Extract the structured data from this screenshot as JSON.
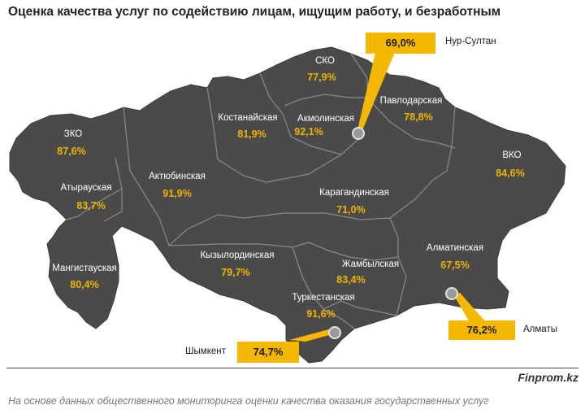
{
  "title": "Оценка качества услуг по содействию лицам, ищущим работу, и безработным",
  "regions": {
    "zko": {
      "name": "ЗКО",
      "value": "87,6%"
    },
    "atyrau": {
      "name": "Атырауская",
      "value": "83,7%"
    },
    "mangistau": {
      "name": "Мангистауская",
      "value": "80,4%"
    },
    "aktobe": {
      "name": "Актюбинская",
      "value": "91,9%"
    },
    "kostanay": {
      "name": "Костанайская",
      "value": "81,9%"
    },
    "sko": {
      "name": "СКО",
      "value": "77,9%"
    },
    "akmola": {
      "name": "Акмолинская",
      "value": "92,1%"
    },
    "pavlodar": {
      "name": "Павлодарская",
      "value": "78,8%"
    },
    "vko": {
      "name": "ВКО",
      "value": "84,6%"
    },
    "karaganda": {
      "name": "Карагандинская",
      "value": "71,0%"
    },
    "kyzylorda": {
      "name": "Кызылординская",
      "value": "79,7%"
    },
    "zhambyl": {
      "name": "Жамбылская",
      "value": "83,4%"
    },
    "almaty_region": {
      "name": "Алматинская",
      "value": "67,5%"
    },
    "turkestan": {
      "name": "Туркестанская",
      "value": "91,6%"
    }
  },
  "cities": {
    "nur_sultan": {
      "name": "Нур-Султан",
      "value": "69,0%"
    },
    "almaty": {
      "name": "Алматы",
      "value": "76,2%"
    },
    "shymkent": {
      "name": "Шымкент",
      "value": "74,7%"
    }
  },
  "colors": {
    "map_fill": "#4a4a4a",
    "accent": "#f5b800",
    "border": "#8a8a8a"
  },
  "brand": "Finprom.kz",
  "footnote": "На основе данных общественного мониторинга оценки качества оказания государственных услуг"
}
